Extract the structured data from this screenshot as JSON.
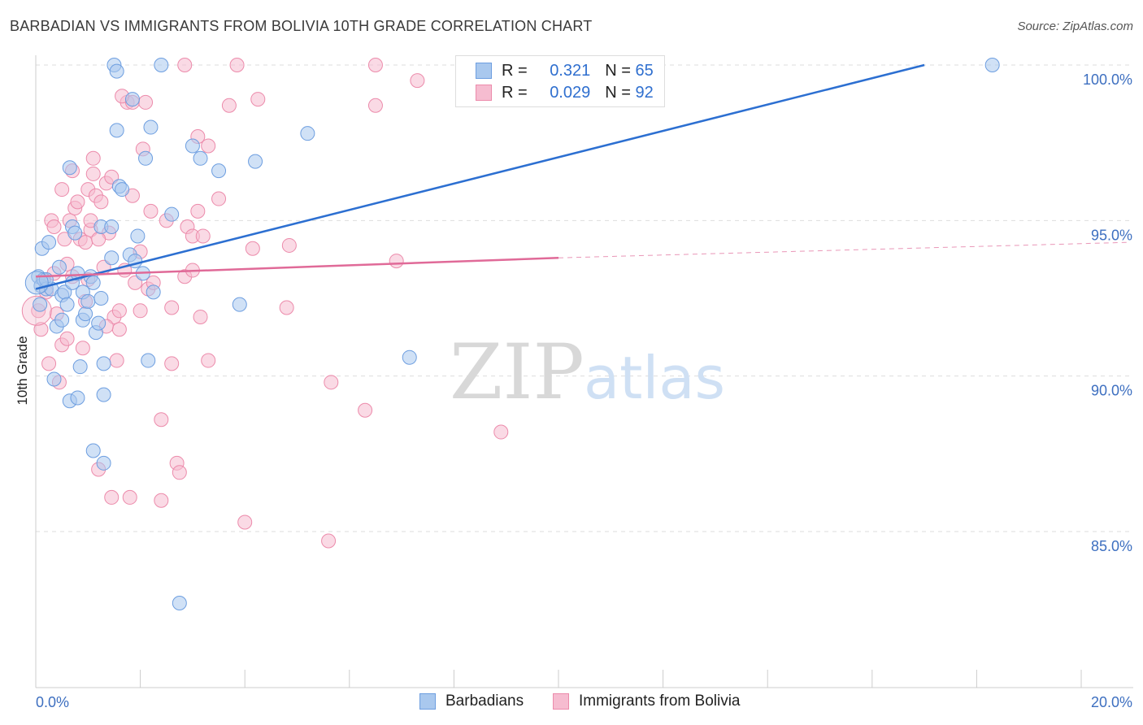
{
  "title": "BARBADIAN VS IMMIGRANTS FROM BOLIVIA 10TH GRADE CORRELATION CHART",
  "source": "Source: ZipAtlas.com",
  "watermark": {
    "zip": "ZIP",
    "atlas": "atlas"
  },
  "colors": {
    "blue_fill": "#a9c8ee",
    "blue_stroke": "#6d9ee0",
    "blue_line": "#2c6fd1",
    "pink_fill": "#f6bcd0",
    "pink_stroke": "#ec8bab",
    "pink_line": "#e06a98",
    "tick_label": "#3d6fc0",
    "grid": "#dddddd"
  },
  "legend": {
    "series1": {
      "r_label": "R =",
      "r_value": "0.321",
      "n_label": "N =",
      "n_value": "65"
    },
    "series2": {
      "r_label": "R =",
      "r_value": "0.029",
      "n_label": "N =",
      "n_value": "92"
    }
  },
  "chart_data": {
    "type": "scatter",
    "title": "BARBADIAN VS IMMIGRANTS FROM BOLIVIA 10TH GRADE CORRELATION CHART",
    "xlabel": "",
    "ylabel": "10th Grade",
    "xlim": [
      0,
      20
    ],
    "ylim": [
      80.3,
      100.5
    ],
    "x_tick_labels": [
      "0.0%",
      "20.0%"
    ],
    "y_ticks": [
      85,
      90,
      95,
      100
    ],
    "y_tick_labels": [
      "85.0%",
      "90.0%",
      "95.0%",
      "100.0%"
    ],
    "series": [
      {
        "name": "Barbadians",
        "trend": {
          "x": [
            0,
            17.0
          ],
          "y": [
            92.8,
            100.0
          ],
          "dashed_to": null
        },
        "points": [
          [
            0.05,
            93.2
          ],
          [
            0.1,
            92.9
          ],
          [
            0.12,
            94.1
          ],
          [
            0.15,
            93.1
          ],
          [
            0.2,
            92.8
          ],
          [
            0.25,
            94.3
          ],
          [
            0.3,
            92.8
          ],
          [
            0.35,
            89.9
          ],
          [
            0.4,
            91.6
          ],
          [
            0.45,
            93.5
          ],
          [
            0.5,
            91.8
          ],
          [
            0.5,
            92.6
          ],
          [
            0.55,
            92.7
          ],
          [
            0.6,
            92.3
          ],
          [
            0.65,
            89.2
          ],
          [
            0.65,
            96.7
          ],
          [
            0.7,
            94.8
          ],
          [
            0.7,
            93.0
          ],
          [
            0.75,
            94.6
          ],
          [
            0.8,
            89.3
          ],
          [
            0.8,
            93.3
          ],
          [
            0.85,
            90.3
          ],
          [
            0.9,
            91.8
          ],
          [
            0.9,
            92.7
          ],
          [
            0.95,
            92.0
          ],
          [
            1.0,
            92.4
          ],
          [
            1.05,
            93.2
          ],
          [
            1.1,
            93.0
          ],
          [
            1.1,
            87.6
          ],
          [
            1.15,
            91.4
          ],
          [
            1.2,
            91.7
          ],
          [
            1.25,
            92.5
          ],
          [
            1.25,
            94.8
          ],
          [
            1.3,
            87.2
          ],
          [
            1.3,
            89.4
          ],
          [
            1.3,
            90.4
          ],
          [
            1.45,
            93.8
          ],
          [
            1.45,
            94.8
          ],
          [
            1.5,
            100.0
          ],
          [
            1.55,
            99.8
          ],
          [
            1.55,
            97.9
          ],
          [
            1.6,
            96.1
          ],
          [
            1.65,
            96.0
          ],
          [
            1.8,
            93.9
          ],
          [
            1.85,
            98.9
          ],
          [
            1.9,
            93.7
          ],
          [
            1.95,
            94.5
          ],
          [
            2.05,
            93.3
          ],
          [
            2.1,
            97.0
          ],
          [
            2.15,
            90.5
          ],
          [
            2.2,
            98.0
          ],
          [
            2.25,
            92.7
          ],
          [
            2.4,
            100.0
          ],
          [
            2.6,
            95.2
          ],
          [
            2.75,
            82.7
          ],
          [
            3.0,
            97.4
          ],
          [
            3.15,
            97.0
          ],
          [
            3.5,
            96.6
          ],
          [
            3.9,
            92.3
          ],
          [
            4.2,
            96.9
          ],
          [
            5.2,
            97.8
          ],
          [
            7.15,
            90.6
          ],
          [
            18.3,
            100.0
          ],
          [
            0.08,
            92.3
          ],
          [
            0.2,
            93.1
          ]
        ]
      },
      {
        "name": "Immigrants from Bolivia",
        "trend": {
          "x": [
            0,
            10.0
          ],
          "y": [
            93.2,
            93.8
          ],
          "dashed_to": {
            "x": 20,
            "y": 94.3
          }
        },
        "points": [
          [
            0.05,
            92.1
          ],
          [
            0.1,
            91.5
          ],
          [
            0.15,
            93.1
          ],
          [
            0.2,
            92.7
          ],
          [
            0.25,
            90.4
          ],
          [
            0.3,
            95.0
          ],
          [
            0.35,
            94.8
          ],
          [
            0.4,
            92.0
          ],
          [
            0.45,
            89.8
          ],
          [
            0.5,
            91.0
          ],
          [
            0.55,
            94.4
          ],
          [
            0.6,
            91.2
          ],
          [
            0.6,
            93.6
          ],
          [
            0.65,
            95.0
          ],
          [
            0.7,
            96.6
          ],
          [
            0.75,
            95.4
          ],
          [
            0.8,
            95.6
          ],
          [
            0.85,
            94.4
          ],
          [
            0.9,
            90.9
          ],
          [
            0.95,
            94.3
          ],
          [
            1.0,
            93.1
          ],
          [
            1.0,
            96.0
          ],
          [
            1.05,
            94.7
          ],
          [
            1.05,
            95.0
          ],
          [
            1.1,
            96.5
          ],
          [
            1.1,
            97.0
          ],
          [
            1.15,
            95.8
          ],
          [
            1.2,
            87.0
          ],
          [
            1.25,
            95.6
          ],
          [
            1.3,
            93.5
          ],
          [
            1.35,
            96.2
          ],
          [
            1.4,
            94.6
          ],
          [
            1.45,
            86.1
          ],
          [
            1.45,
            96.4
          ],
          [
            1.5,
            91.9
          ],
          [
            1.55,
            90.5
          ],
          [
            1.6,
            92.1
          ],
          [
            1.6,
            91.5
          ],
          [
            1.7,
            93.4
          ],
          [
            1.75,
            98.8
          ],
          [
            1.8,
            86.1
          ],
          [
            1.85,
            95.8
          ],
          [
            1.85,
            98.8
          ],
          [
            1.9,
            93.0
          ],
          [
            2.0,
            92.1
          ],
          [
            2.05,
            97.3
          ],
          [
            2.1,
            98.8
          ],
          [
            2.15,
            92.8
          ],
          [
            2.2,
            95.3
          ],
          [
            2.25,
            93.0
          ],
          [
            2.4,
            86.0
          ],
          [
            2.4,
            88.6
          ],
          [
            2.5,
            95.0
          ],
          [
            2.6,
            90.4
          ],
          [
            2.6,
            92.2
          ],
          [
            2.7,
            87.2
          ],
          [
            2.75,
            86.9
          ],
          [
            2.85,
            93.2
          ],
          [
            2.9,
            94.8
          ],
          [
            3.0,
            93.4
          ],
          [
            3.0,
            94.5
          ],
          [
            3.1,
            97.7
          ],
          [
            3.1,
            95.3
          ],
          [
            3.15,
            91.9
          ],
          [
            3.2,
            94.5
          ],
          [
            3.3,
            90.5
          ],
          [
            3.5,
            95.7
          ],
          [
            3.7,
            98.7
          ],
          [
            3.85,
            100.0
          ],
          [
            4.0,
            85.3
          ],
          [
            4.15,
            94.1
          ],
          [
            4.25,
            98.9
          ],
          [
            4.8,
            92.2
          ],
          [
            4.85,
            94.2
          ],
          [
            5.6,
            84.7
          ],
          [
            5.65,
            89.8
          ],
          [
            6.3,
            88.9
          ],
          [
            6.5,
            100.0
          ],
          [
            6.5,
            98.7
          ],
          [
            6.9,
            93.7
          ],
          [
            7.3,
            99.5
          ],
          [
            8.9,
            88.2
          ],
          [
            2.85,
            100.0
          ],
          [
            1.2,
            94.4
          ],
          [
            0.95,
            92.4
          ],
          [
            1.65,
            99.0
          ],
          [
            0.35,
            93.3
          ],
          [
            0.7,
            93.2
          ],
          [
            2.0,
            94.0
          ],
          [
            3.3,
            97.4
          ],
          [
            0.5,
            96.0
          ],
          [
            1.35,
            91.6
          ]
        ]
      }
    ]
  },
  "bottom_legend": {
    "series1": "Barbadians",
    "series2": "Immigrants from Bolivia"
  }
}
